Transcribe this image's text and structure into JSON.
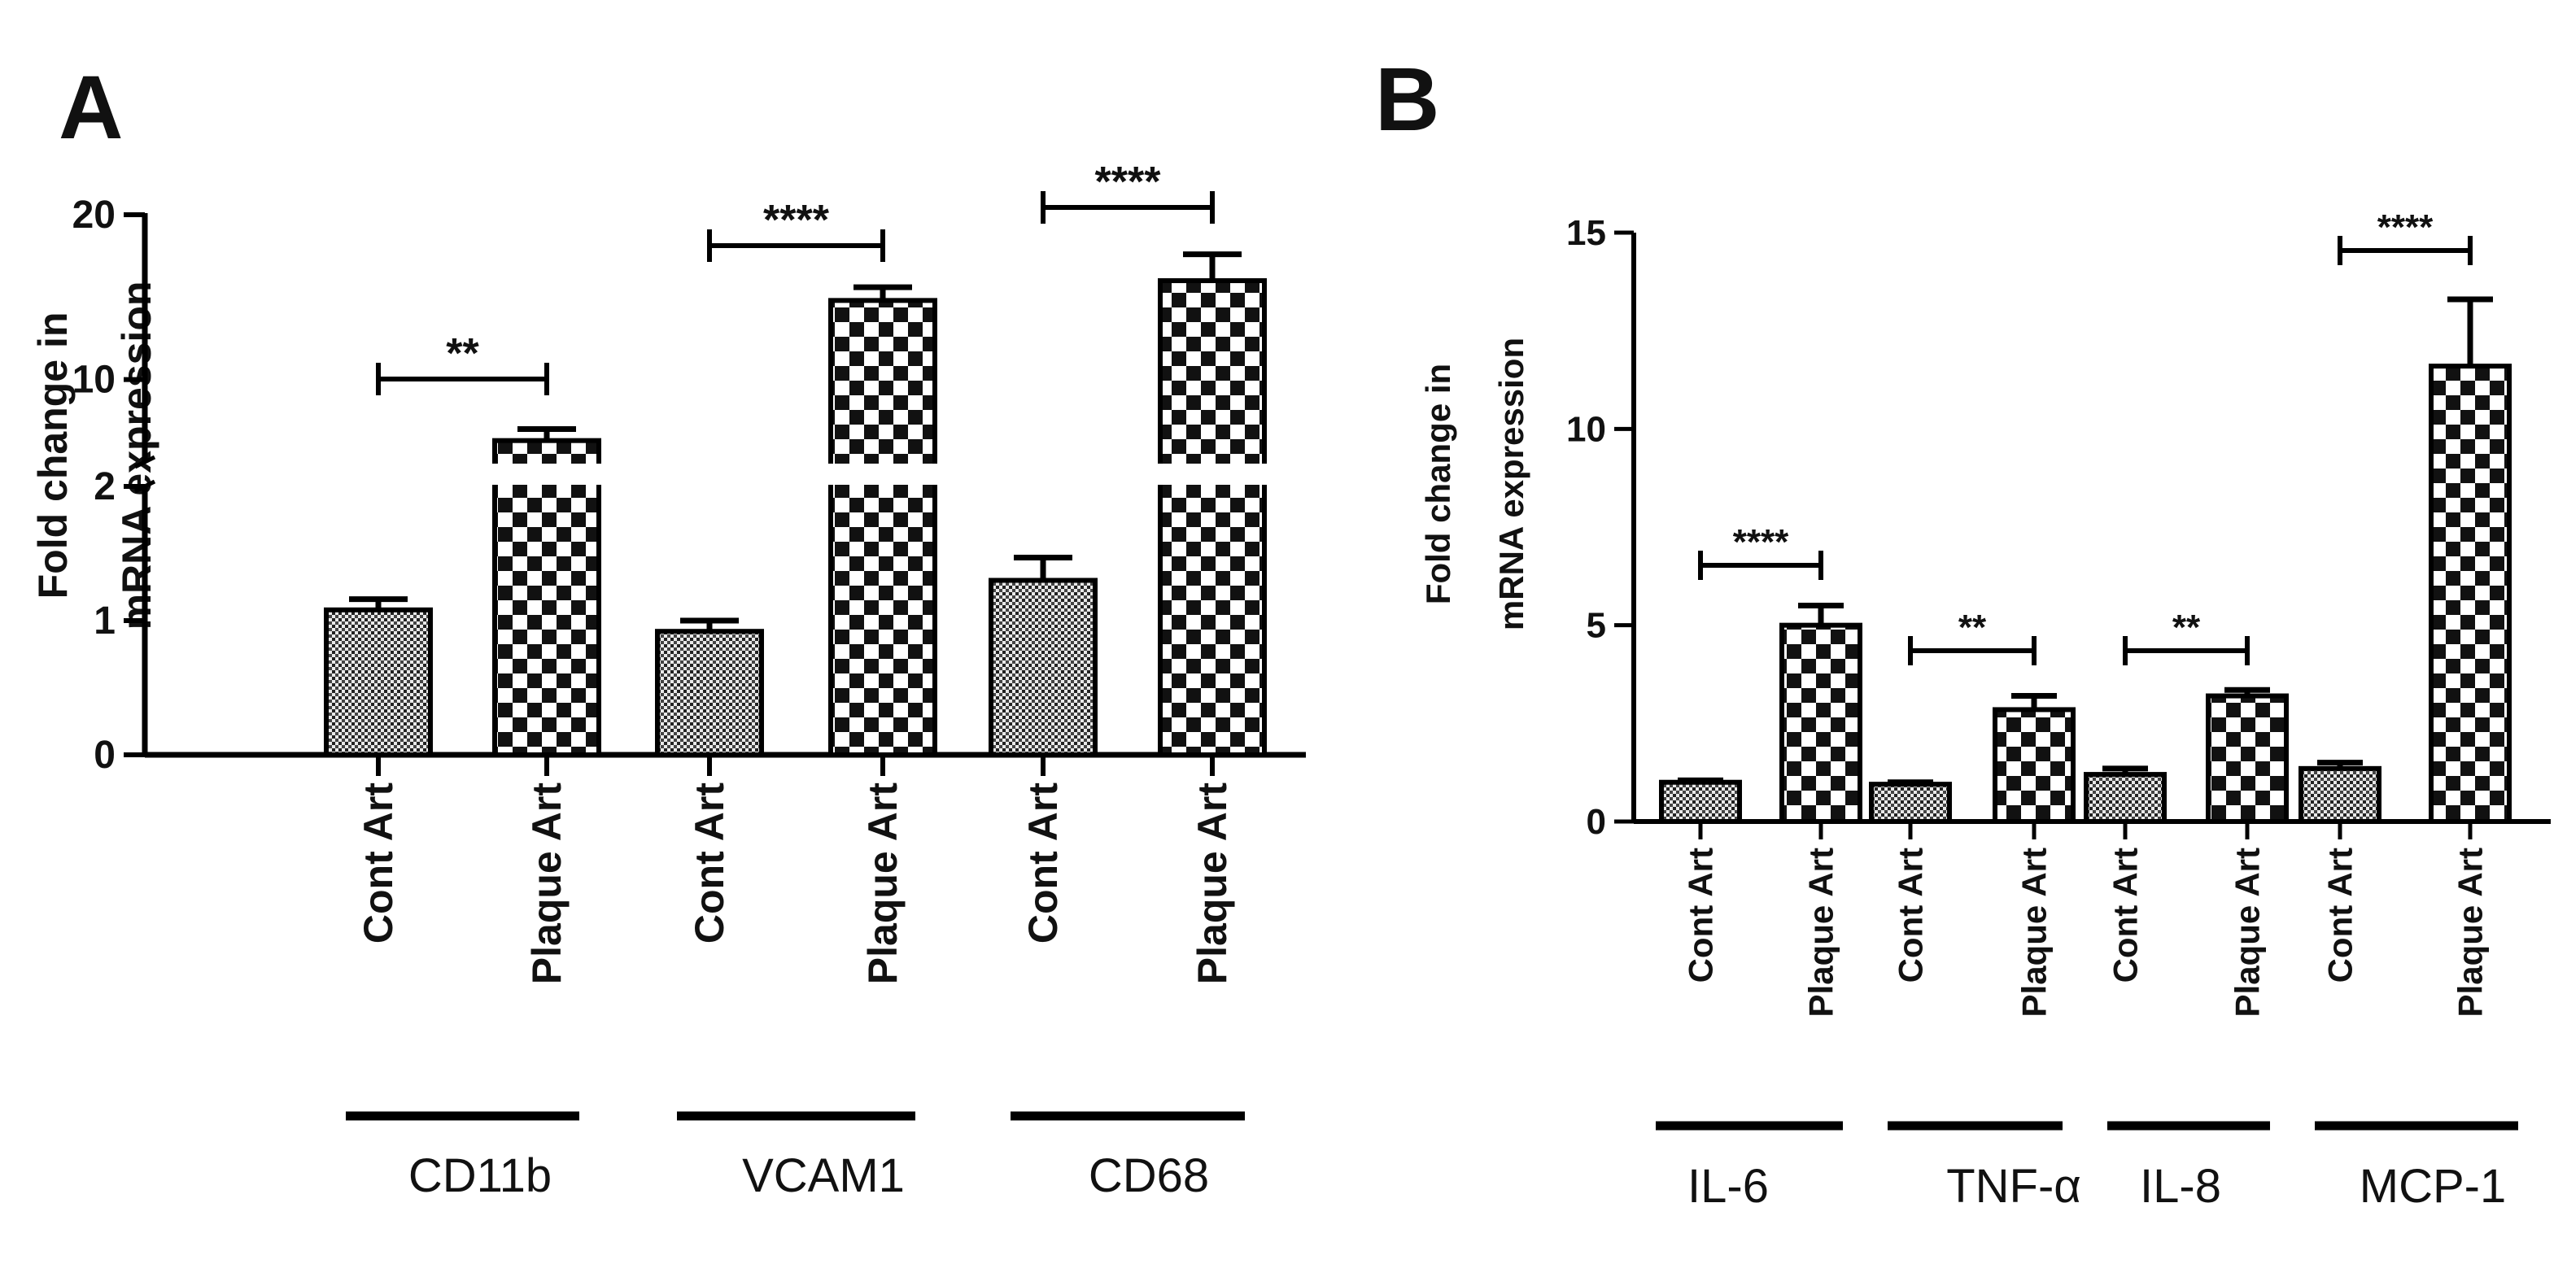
{
  "chart_data": [
    {
      "panel": "A",
      "type": "bar",
      "ylabel": [
        "Fold change in",
        "mRNA expression"
      ],
      "y_axis": "broken",
      "lower_ylim": [
        0,
        2
      ],
      "lower_ticks": [
        "0",
        "1",
        "2"
      ],
      "upper_ylim": [
        5,
        20
      ],
      "upper_ticks": [
        "10",
        "20"
      ],
      "categories": [
        "Cont Art",
        "Plaque Art",
        "Cont Art",
        "Plaque Art",
        "Cont Art",
        "Plaque Art"
      ],
      "groups": [
        {
          "label": "CD11b",
          "values": [
            1.08,
            6.3
          ],
          "errors": [
            0.08,
            0.7
          ],
          "significance": "**"
        },
        {
          "label": "VCAM1",
          "values": [
            0.92,
            14.8
          ],
          "errors": [
            0.08,
            0.8
          ],
          "significance": "****"
        },
        {
          "label": "CD68",
          "values": [
            1.3,
            16.0
          ],
          "errors": [
            0.17,
            1.6
          ],
          "significance": "****"
        }
      ]
    },
    {
      "panel": "B",
      "type": "bar",
      "ylabel": [
        "Fold change in",
        "mRNA expression"
      ],
      "ylim": [
        0,
        15
      ],
      "yticks": [
        "0",
        "5",
        "10",
        "15"
      ],
      "categories": [
        "Cont Art",
        "Plaque Art",
        "Cont Art",
        "Plaque Art",
        "Cont Art",
        "Plaque Art",
        "Cont Art",
        "Plaque Art"
      ],
      "groups": [
        {
          "label": "IL-6",
          "values": [
            1.0,
            5.0
          ],
          "errors": [
            0.05,
            0.5
          ],
          "significance": "****"
        },
        {
          "label": "TNF-α",
          "values": [
            0.95,
            2.85
          ],
          "errors": [
            0.05,
            0.35
          ],
          "significance": "**"
        },
        {
          "label": "IL-8",
          "values": [
            1.2,
            3.2
          ],
          "errors": [
            0.15,
            0.15
          ],
          "significance": "**"
        },
        {
          "label": "MCP-1",
          "values": [
            1.35,
            11.6
          ],
          "errors": [
            0.15,
            1.7
          ],
          "significance": "****"
        }
      ]
    }
  ]
}
